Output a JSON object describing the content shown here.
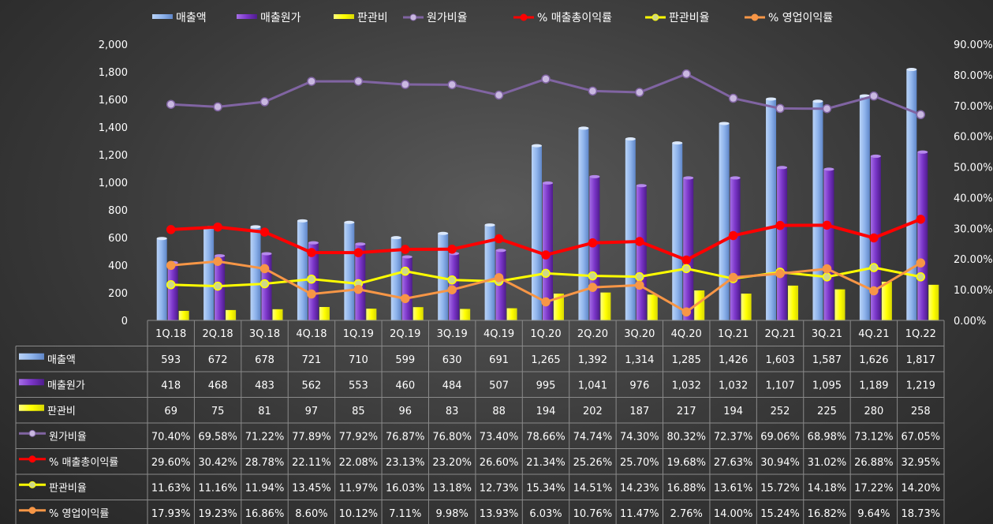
{
  "chart_data": {
    "type": "bar",
    "categories": [
      "1Q.18",
      "2Q.18",
      "3Q.18",
      "4Q.18",
      "1Q.19",
      "2Q.19",
      "3Q.19",
      "4Q.19",
      "1Q.20",
      "2Q.20",
      "3Q.20",
      "4Q.20",
      "1Q.21",
      "2Q.21",
      "3Q.21",
      "4Q.21",
      "1Q.22"
    ],
    "left_axis": {
      "min": 0,
      "max": 2000,
      "step": 200,
      "ticks": [
        "0",
        "200",
        "400",
        "600",
        "800",
        "1,000",
        "1,200",
        "1,400",
        "1,600",
        "1,800",
        "2,000"
      ]
    },
    "right_axis": {
      "min": 0,
      "max": 90,
      "step": 10,
      "ticks": [
        "0.00%",
        "10.00%",
        "20.00%",
        "30.00%",
        "40.00%",
        "50.00%",
        "60.00%",
        "70.00%",
        "80.00%",
        "90.00%"
      ]
    },
    "bar_series": [
      {
        "name": "매출액",
        "color": "#8fb4ec",
        "values": [
          593,
          672,
          678,
          721,
          710,
          599,
          630,
          691,
          1265,
          1392,
          1314,
          1285,
          1426,
          1603,
          1587,
          1626,
          1817
        ],
        "labels": [
          "593",
          "672",
          "678",
          "721",
          "710",
          "599",
          "630",
          "691",
          "1,265",
          "1,392",
          "1,314",
          "1,285",
          "1,426",
          "1,603",
          "1,587",
          "1,626",
          "1,817"
        ]
      },
      {
        "name": "매출원가",
        "color": "#7a35c8",
        "values": [
          418,
          468,
          483,
          562,
          553,
          460,
          484,
          507,
          995,
          1041,
          976,
          1032,
          1032,
          1107,
          1095,
          1189,
          1219
        ],
        "labels": [
          "418",
          "468",
          "483",
          "562",
          "553",
          "460",
          "484",
          "507",
          "995",
          "1,041",
          "976",
          "1,032",
          "1,032",
          "1,107",
          "1,095",
          "1,189",
          "1,219"
        ]
      },
      {
        "name": "판관비",
        "color": "#ffff00",
        "values": [
          69,
          75,
          81,
          97,
          85,
          96,
          83,
          88,
          194,
          202,
          187,
          217,
          194,
          252,
          225,
          280,
          258
        ],
        "labels": [
          "69",
          "75",
          "81",
          "97",
          "85",
          "96",
          "83",
          "88",
          "194",
          "202",
          "187",
          "217",
          "194",
          "252",
          "225",
          "280",
          "258"
        ]
      }
    ],
    "line_series": [
      {
        "name": "원가비율",
        "color": "#8064a2",
        "values": [
          70.4,
          69.58,
          71.22,
          77.89,
          77.92,
          76.87,
          76.8,
          73.4,
          78.66,
          74.74,
          74.3,
          80.32,
          72.37,
          69.06,
          68.98,
          73.12,
          67.05
        ],
        "labels": [
          "70.40%",
          "69.58%",
          "71.22%",
          "77.89%",
          "77.92%",
          "76.87%",
          "76.80%",
          "73.40%",
          "78.66%",
          "74.74%",
          "74.30%",
          "80.32%",
          "72.37%",
          "69.06%",
          "68.98%",
          "73.12%",
          "67.05%"
        ]
      },
      {
        "name": "% 매출총이익률",
        "color": "#ff0000",
        "values": [
          29.6,
          30.42,
          28.78,
          22.11,
          22.08,
          23.13,
          23.2,
          26.6,
          21.34,
          25.26,
          25.7,
          19.68,
          27.63,
          30.94,
          31.02,
          26.88,
          32.95
        ],
        "labels": [
          "29.60%",
          "30.42%",
          "28.78%",
          "22.11%",
          "22.08%",
          "23.13%",
          "23.20%",
          "26.60%",
          "21.34%",
          "25.26%",
          "25.70%",
          "19.68%",
          "27.63%",
          "30.94%",
          "31.02%",
          "26.88%",
          "32.95%"
        ]
      },
      {
        "name": "판관비율",
        "color": "#ffff00",
        "values": [
          11.63,
          11.16,
          11.94,
          13.45,
          11.97,
          16.03,
          13.18,
          12.73,
          15.34,
          14.51,
          14.23,
          16.88,
          13.61,
          15.72,
          14.18,
          17.22,
          14.2
        ],
        "labels": [
          "11.63%",
          "11.16%",
          "11.94%",
          "13.45%",
          "11.97%",
          "16.03%",
          "13.18%",
          "12.73%",
          "15.34%",
          "14.51%",
          "14.23%",
          "16.88%",
          "13.61%",
          "15.72%",
          "14.18%",
          "17.22%",
          "14.20%"
        ]
      },
      {
        "name": "% 영업이익률",
        "color": "#f79646",
        "values": [
          17.93,
          19.23,
          16.86,
          8.6,
          10.12,
          7.11,
          9.98,
          13.93,
          6.03,
          10.76,
          11.47,
          2.76,
          14.0,
          15.24,
          16.82,
          9.64,
          18.73
        ],
        "labels": [
          "17.93%",
          "19.23%",
          "16.86%",
          "8.60%",
          "10.12%",
          "7.11%",
          "9.98%",
          "13.93%",
          "6.03%",
          "10.76%",
          "11.47%",
          "2.76%",
          "14.00%",
          "15.24%",
          "16.82%",
          "9.64%",
          "18.73%"
        ]
      }
    ],
    "legend_order": [
      "매출액",
      "매출원가",
      "판관비",
      "원가비율",
      "% 매출총이익률",
      "판관비율",
      "% 영업이익률"
    ],
    "legend_position": "top",
    "grid": false,
    "data_table": true
  }
}
